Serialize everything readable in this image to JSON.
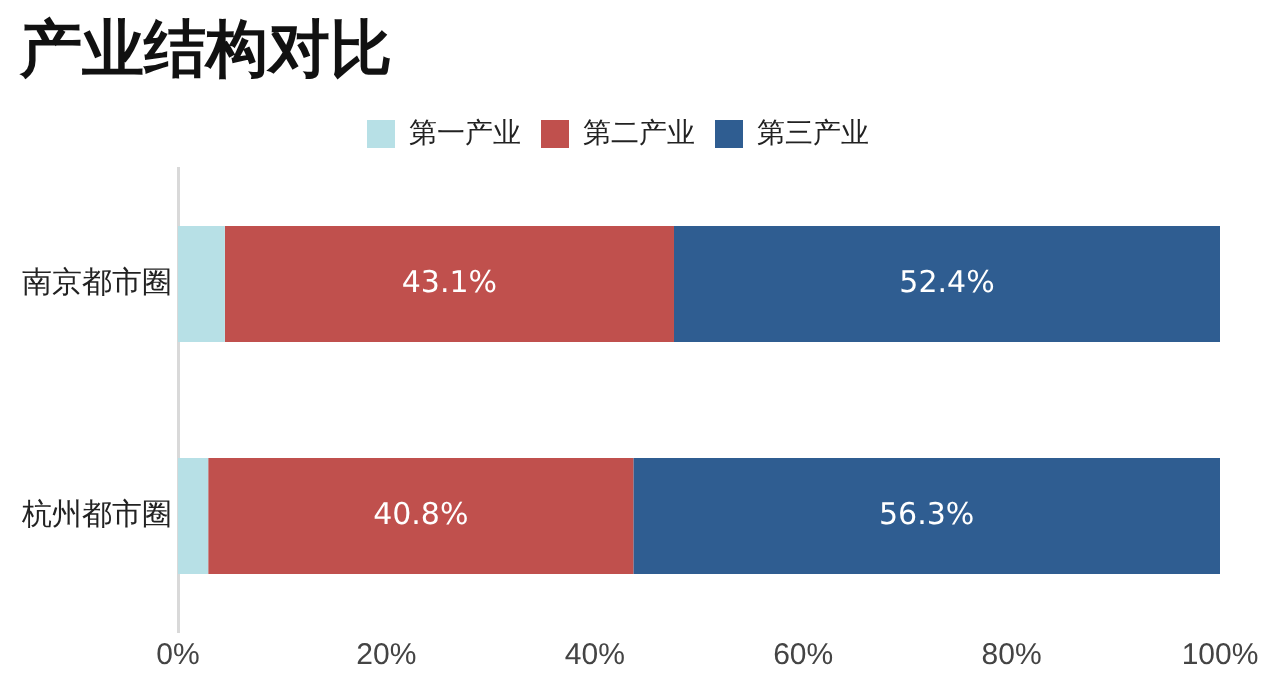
{
  "chart_data": {
    "type": "bar",
    "title": "产业结构对比",
    "orientation": "horizontal",
    "stacked": true,
    "categories": [
      "南京都市圈",
      "杭州都市圈"
    ],
    "series": [
      {
        "name": "第一产业",
        "color": "#b7e0e6",
        "values": [
          4.5,
          2.9
        ],
        "value_labels": [
          null,
          null
        ]
      },
      {
        "name": "第二产业",
        "color": "#c0504d",
        "values": [
          43.1,
          40.8
        ],
        "value_labels": [
          "43.1%",
          "40.8%"
        ]
      },
      {
        "name": "第三产业",
        "color": "#2f5d91",
        "values": [
          52.4,
          56.3
        ],
        "value_labels": [
          "52.4%",
          "56.3%"
        ]
      }
    ],
    "xlim": [
      0,
      100
    ],
    "xticks": [
      {
        "value": 0,
        "label": "0%"
      },
      {
        "value": 20,
        "label": "20%"
      },
      {
        "value": 40,
        "label": "40%"
      },
      {
        "value": 60,
        "label": "60%"
      },
      {
        "value": 80,
        "label": "80%"
      },
      {
        "value": 100,
        "label": "100%"
      }
    ],
    "grid": false,
    "legend": "top"
  }
}
